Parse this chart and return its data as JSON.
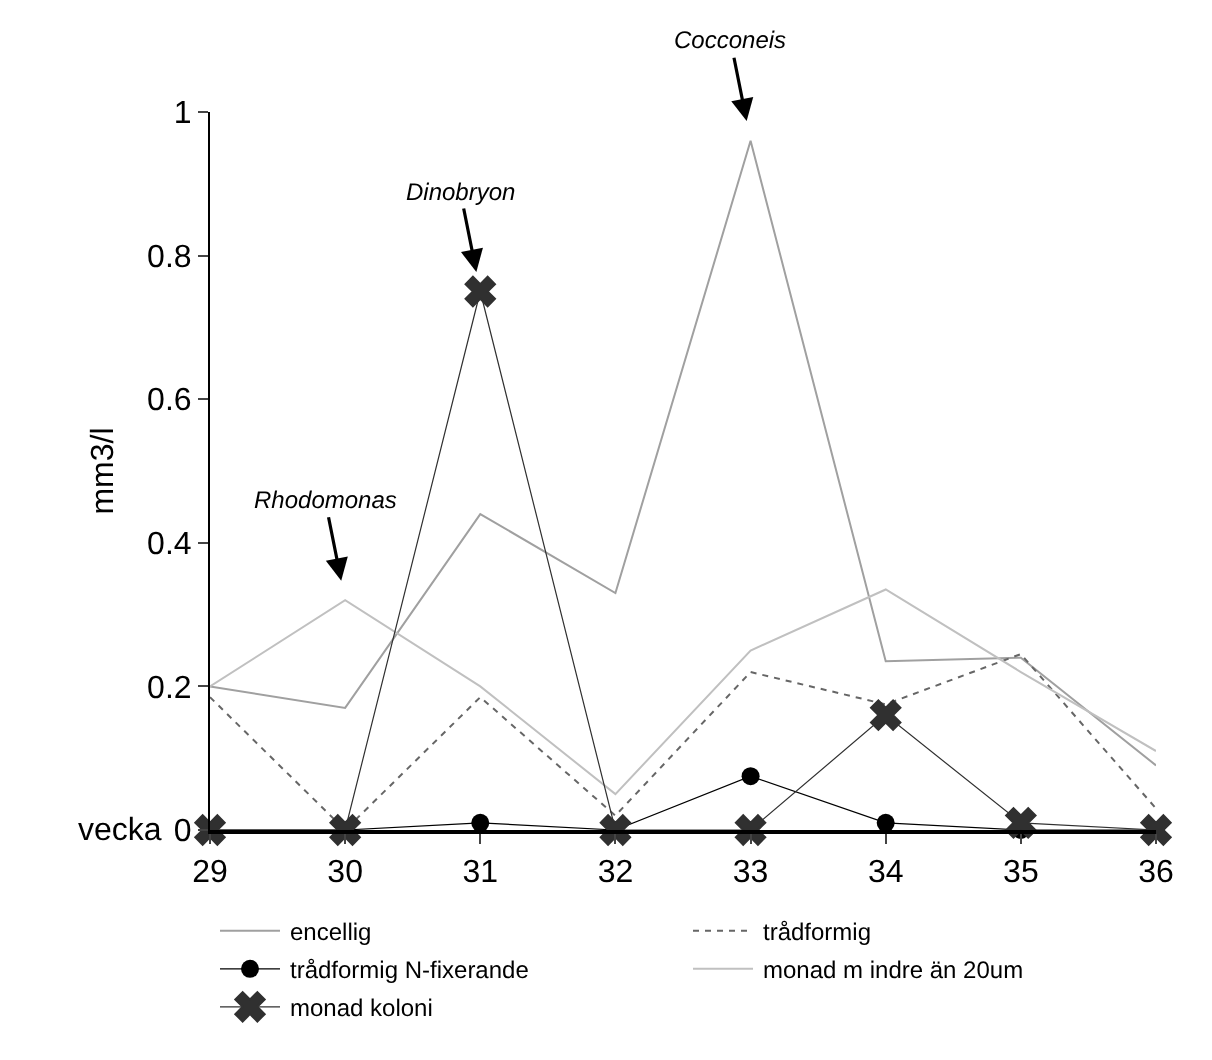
{
  "chart_data": {
    "type": "line",
    "xlabel": "vecka",
    "ylabel": "mm3/l",
    "x": [
      29,
      30,
      31,
      32,
      33,
      34,
      35,
      36
    ],
    "xlim": [
      29,
      36
    ],
    "xticks": [
      29,
      30,
      31,
      32,
      33,
      34,
      35,
      36
    ],
    "ylim": [
      0,
      1
    ],
    "yticks": [
      0,
      0.2,
      0.4,
      0.6,
      0.8,
      1
    ],
    "grid": false,
    "legend": "bottom",
    "marker": "none",
    "line_style": "solid",
    "series": [
      {
        "name": "encellig",
        "color": "#a0a0a0",
        "values": [
          0.2,
          0.17,
          0.44,
          0.33,
          0.96,
          0.235,
          0.24,
          0.09
        ]
      },
      {
        "name": "trådformig",
        "color": "#666666",
        "line_style": "dotted",
        "values": [
          0.185,
          0,
          0.185,
          0.02,
          0.22,
          0.175,
          0.245,
          0.03
        ]
      },
      {
        "name": "trådformig N-fixerande",
        "color": "#000000",
        "marker": "circle",
        "values": [
          0,
          0,
          0.01,
          0,
          0.075,
          0.01,
          0,
          0
        ]
      },
      {
        "name": "monad m indre än 20um",
        "color": "#c0c0c0",
        "values": [
          0.2,
          0.32,
          0.2,
          0.05,
          0.25,
          0.335,
          0.22,
          0.11
        ]
      },
      {
        "name": "monad koloni",
        "color": "#303030",
        "marker": "cross",
        "values": [
          0,
          0,
          0.75,
          0,
          0,
          0.16,
          0.01,
          0
        ]
      }
    ],
    "annotations": [
      {
        "text": "Rhodomonas",
        "x": 30,
        "y": 0.32
      },
      {
        "text": "Dinobryon",
        "x": 31,
        "y": 0.75
      },
      {
        "text": "Cocconeis",
        "x": 33,
        "y": 0.96
      }
    ]
  }
}
